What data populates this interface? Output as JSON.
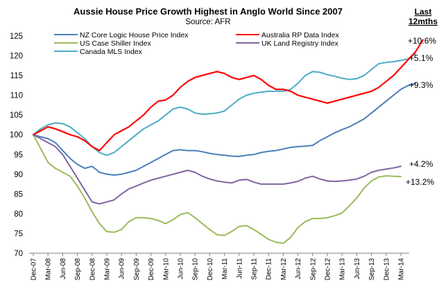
{
  "chart_data": {
    "type": "line",
    "title": "Aussie House Price Growth Highest in Anglo World Since 2007",
    "subtitle": "Source: AFR",
    "corner_label_line1": "Last",
    "corner_label_line2": "12mths",
    "ylim": [
      70,
      125
    ],
    "yticks": [
      70,
      75,
      80,
      85,
      90,
      95,
      100,
      105,
      110,
      115,
      120,
      125
    ],
    "x_start": "Dec-07",
    "x_end": "Mar-14",
    "x_tick_labels": [
      "Dec-07",
      "Mar-08",
      "Jun-08",
      "Sep-08",
      "Dec-08",
      "Mar-09",
      "Jun-09",
      "Sep-09",
      "Dec-09",
      "Mar-10",
      "Jun-10",
      "Sep-10",
      "Dec-10",
      "Mar-11",
      "Jun-11",
      "Sep-11",
      "Dec-11",
      "Mar-12",
      "Jun-12",
      "Sep-12",
      "Dec-12",
      "Mar-13",
      "Jun-13",
      "Sep-13",
      "Dec-13",
      "Mar-14"
    ],
    "grid": false,
    "legend": "top, two columns",
    "series": [
      {
        "name": "NZ Core Logic House Price Index",
        "color": "#4a7ebb",
        "annotation": "+9.3%",
        "points": [
          [
            0,
            100
          ],
          [
            1,
            99.5
          ],
          [
            2,
            99
          ],
          [
            3,
            98
          ],
          [
            4,
            96
          ],
          [
            5,
            94
          ],
          [
            6,
            92.5
          ],
          [
            7,
            91.5
          ],
          [
            8,
            92
          ],
          [
            9,
            90.5
          ],
          [
            10,
            90
          ],
          [
            11,
            89.8
          ],
          [
            12,
            90
          ],
          [
            13,
            90.5
          ],
          [
            14,
            91
          ],
          [
            15,
            92
          ],
          [
            16,
            93
          ],
          [
            17,
            94
          ],
          [
            18,
            95
          ],
          [
            19,
            96
          ],
          [
            20,
            96.2
          ],
          [
            21,
            96
          ],
          [
            22,
            96
          ],
          [
            23,
            95.7
          ],
          [
            24,
            95.3
          ],
          [
            25,
            95
          ],
          [
            26,
            94.8
          ],
          [
            27,
            94.6
          ],
          [
            28,
            94.5
          ],
          [
            29,
            94.8
          ],
          [
            30,
            95
          ],
          [
            31,
            95.5
          ],
          [
            32,
            95.8
          ],
          [
            33,
            96
          ],
          [
            34,
            96.4
          ],
          [
            35,
            96.8
          ],
          [
            36,
            97
          ],
          [
            37,
            97.1
          ],
          [
            38,
            97.3
          ],
          [
            39,
            98.5
          ],
          [
            40,
            99.5
          ],
          [
            41,
            100.5
          ],
          [
            42,
            101.3
          ],
          [
            43,
            102
          ],
          [
            44,
            103
          ],
          [
            45,
            104
          ],
          [
            46,
            105.5
          ],
          [
            47,
            107
          ],
          [
            48,
            108.5
          ],
          [
            49,
            110
          ],
          [
            50,
            111.5
          ],
          [
            51,
            112.5
          ],
          [
            52,
            113
          ]
        ]
      },
      {
        "name": "Australia RP Data Index",
        "color": "#ff0000",
        "annotation": "+10.6%",
        "points": [
          [
            0,
            100
          ],
          [
            1,
            101
          ],
          [
            2,
            102
          ],
          [
            3,
            101.5
          ],
          [
            4,
            100.8
          ],
          [
            5,
            100
          ],
          [
            6,
            99.5
          ],
          [
            7,
            98.5
          ],
          [
            8,
            97
          ],
          [
            9,
            96
          ],
          [
            10,
            98
          ],
          [
            11,
            100
          ],
          [
            12,
            101
          ],
          [
            13,
            102
          ],
          [
            14,
            103.5
          ],
          [
            15,
            105
          ],
          [
            16,
            107
          ],
          [
            17,
            108.5
          ],
          [
            18,
            108.8
          ],
          [
            19,
            110
          ],
          [
            20,
            112
          ],
          [
            21,
            113.5
          ],
          [
            22,
            114.5
          ],
          [
            23,
            115
          ],
          [
            24,
            115.5
          ],
          [
            25,
            116
          ],
          [
            26,
            115.5
          ],
          [
            27,
            114.5
          ],
          [
            28,
            114
          ],
          [
            29,
            114.5
          ],
          [
            30,
            115
          ],
          [
            31,
            114
          ],
          [
            32,
            112.5
          ],
          [
            33,
            111.5
          ],
          [
            34,
            111.5
          ],
          [
            35,
            111
          ],
          [
            36,
            110
          ],
          [
            37,
            109.5
          ],
          [
            38,
            109
          ],
          [
            39,
            108.5
          ],
          [
            40,
            108
          ],
          [
            41,
            108.5
          ],
          [
            42,
            109
          ],
          [
            43,
            109.5
          ],
          [
            44,
            110
          ],
          [
            45,
            110.5
          ],
          [
            46,
            111
          ],
          [
            47,
            112
          ],
          [
            48,
            113.5
          ],
          [
            49,
            115
          ],
          [
            50,
            117
          ],
          [
            51,
            119
          ],
          [
            52,
            121
          ],
          [
            53,
            124
          ]
        ]
      },
      {
        "name": "US Case Shiller Index",
        "color": "#9bbb59",
        "annotation": "+13.2%",
        "points": [
          [
            0,
            100
          ],
          [
            1,
            96.5
          ],
          [
            2,
            93
          ],
          [
            3,
            91.5
          ],
          [
            4,
            90.5
          ],
          [
            5,
            89.5
          ],
          [
            6,
            87
          ],
          [
            7,
            84
          ],
          [
            8,
            80.5
          ],
          [
            9,
            77.5
          ],
          [
            10,
            75.5
          ],
          [
            11,
            75.3
          ],
          [
            12,
            76
          ],
          [
            13,
            78
          ],
          [
            14,
            79
          ],
          [
            15,
            79
          ],
          [
            16,
            78.8
          ],
          [
            17,
            78.3
          ],
          [
            18,
            77.5
          ],
          [
            19,
            78.5
          ],
          [
            20,
            79.8
          ],
          [
            21,
            80.3
          ],
          [
            22,
            79
          ],
          [
            23,
            77.5
          ],
          [
            24,
            76
          ],
          [
            25,
            74.7
          ],
          [
            26,
            74.5
          ],
          [
            27,
            75.5
          ],
          [
            28,
            76.8
          ],
          [
            29,
            77
          ],
          [
            30,
            76
          ],
          [
            31,
            74.8
          ],
          [
            32,
            73.5
          ],
          [
            33,
            72.8
          ],
          [
            34,
            72.5
          ],
          [
            35,
            74
          ],
          [
            36,
            76.5
          ],
          [
            37,
            78
          ],
          [
            38,
            78.8
          ],
          [
            39,
            78.8
          ],
          [
            40,
            79
          ],
          [
            41,
            79.5
          ],
          [
            42,
            80.2
          ],
          [
            43,
            82
          ],
          [
            44,
            84
          ],
          [
            45,
            86.5
          ],
          [
            46,
            88.3
          ],
          [
            47,
            89.3
          ],
          [
            48,
            89.6
          ],
          [
            49,
            89.5
          ],
          [
            50,
            89.4
          ]
        ]
      },
      {
        "name": "UK Land Registry Index",
        "color": "#8064a2",
        "annotation": "+4.2%",
        "points": [
          [
            0,
            100
          ],
          [
            1,
            99
          ],
          [
            2,
            98
          ],
          [
            3,
            97
          ],
          [
            4,
            95
          ],
          [
            5,
            92
          ],
          [
            6,
            89
          ],
          [
            7,
            86
          ],
          [
            8,
            83
          ],
          [
            9,
            82.5
          ],
          [
            10,
            83
          ],
          [
            11,
            83.5
          ],
          [
            12,
            85
          ],
          [
            13,
            86.3
          ],
          [
            14,
            87
          ],
          [
            15,
            87.8
          ],
          [
            16,
            88.5
          ],
          [
            17,
            89
          ],
          [
            18,
            89.5
          ],
          [
            19,
            90
          ],
          [
            20,
            90.5
          ],
          [
            21,
            91
          ],
          [
            22,
            90.5
          ],
          [
            23,
            89.5
          ],
          [
            24,
            88.8
          ],
          [
            25,
            88.3
          ],
          [
            26,
            88
          ],
          [
            27,
            87.8
          ],
          [
            28,
            88.5
          ],
          [
            29,
            88.7
          ],
          [
            30,
            88
          ],
          [
            31,
            87.5
          ],
          [
            32,
            87.5
          ],
          [
            33,
            87.5
          ],
          [
            34,
            87.5
          ],
          [
            35,
            87.8
          ],
          [
            36,
            88.2
          ],
          [
            37,
            89
          ],
          [
            38,
            89.5
          ],
          [
            39,
            88.8
          ],
          [
            40,
            88.3
          ],
          [
            41,
            88.2
          ],
          [
            42,
            88.3
          ],
          [
            43,
            88.5
          ],
          [
            44,
            88.8
          ],
          [
            45,
            89.5
          ],
          [
            46,
            90.5
          ],
          [
            47,
            91
          ],
          [
            48,
            91.3
          ],
          [
            49,
            91.6
          ],
          [
            50,
            92
          ]
        ]
      },
      {
        "name": "Canada MLS Index",
        "color": "#4bacc6",
        "annotation": "+5.1%",
        "points": [
          [
            0,
            100
          ],
          [
            1,
            101.5
          ],
          [
            2,
            102.5
          ],
          [
            3,
            103
          ],
          [
            4,
            102.8
          ],
          [
            5,
            102
          ],
          [
            6,
            100.5
          ],
          [
            7,
            99
          ],
          [
            8,
            97
          ],
          [
            9,
            95.5
          ],
          [
            10,
            94.8
          ],
          [
            11,
            95.5
          ],
          [
            12,
            97
          ],
          [
            13,
            98.5
          ],
          [
            14,
            100
          ],
          [
            15,
            101.5
          ],
          [
            16,
            102.5
          ],
          [
            17,
            103.5
          ],
          [
            18,
            105
          ],
          [
            19,
            106.5
          ],
          [
            20,
            107
          ],
          [
            21,
            106.5
          ],
          [
            22,
            105.5
          ],
          [
            23,
            105.2
          ],
          [
            24,
            105.3
          ],
          [
            25,
            105.5
          ],
          [
            26,
            106
          ],
          [
            27,
            107.5
          ],
          [
            28,
            109
          ],
          [
            29,
            110
          ],
          [
            30,
            110.5
          ],
          [
            31,
            110.8
          ],
          [
            32,
            111
          ],
          [
            33,
            111
          ],
          [
            34,
            111
          ],
          [
            35,
            111.5
          ],
          [
            36,
            113
          ],
          [
            37,
            115
          ],
          [
            38,
            116
          ],
          [
            39,
            115.8
          ],
          [
            40,
            115.2
          ],
          [
            41,
            114.8
          ],
          [
            42,
            114.3
          ],
          [
            43,
            114
          ],
          [
            44,
            114.2
          ],
          [
            45,
            115
          ],
          [
            46,
            116.5
          ],
          [
            47,
            118
          ],
          [
            48,
            118.3
          ],
          [
            49,
            118.5
          ],
          [
            50,
            118.8
          ],
          [
            51,
            119.2
          ],
          [
            52,
            120.5
          ]
        ]
      }
    ]
  }
}
